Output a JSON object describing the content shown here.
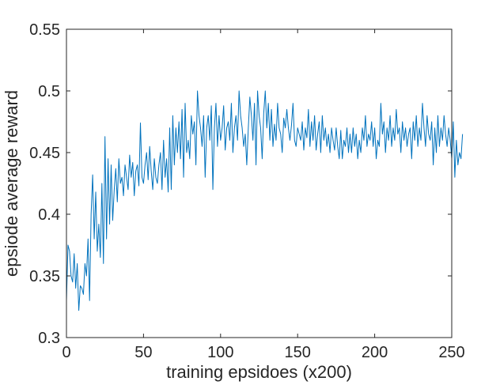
{
  "chart_data": {
    "type": "line",
    "title": "",
    "xlabel": "training epsidoes (x200)",
    "ylabel": "epsiode average reward",
    "xlim": [
      0,
      250
    ],
    "ylim": [
      0.3,
      0.55
    ],
    "xticks": [
      0,
      50,
      100,
      150,
      200,
      250
    ],
    "xtick_labels": [
      "0",
      "50",
      "100",
      "150",
      "200",
      "250"
    ],
    "yticks": [
      0.3,
      0.35,
      0.4,
      0.45,
      0.5,
      0.55
    ],
    "ytick_labels": [
      "0.3",
      "0.35",
      "0.4",
      "0.45",
      "0.5",
      "0.55"
    ],
    "grid": false,
    "box": true,
    "line_color": "#0072BD",
    "axis_color": "#262626",
    "series": [
      {
        "values": [
          0.33,
          0.375,
          0.37,
          0.35,
          0.345,
          0.368,
          0.34,
          0.36,
          0.322,
          0.342,
          0.34,
          0.335,
          0.36,
          0.35,
          0.38,
          0.33,
          0.4,
          0.432,
          0.38,
          0.418,
          0.37,
          0.392,
          0.365,
          0.425,
          0.36,
          0.463,
          0.38,
          0.445,
          0.392,
          0.44,
          0.395,
          0.42,
          0.437,
          0.41,
          0.445,
          0.425,
          0.43,
          0.415,
          0.44,
          0.43,
          0.42,
          0.448,
          0.43,
          0.442,
          0.415,
          0.435,
          0.44,
          0.423,
          0.474,
          0.43,
          0.425,
          0.44,
          0.45,
          0.428,
          0.455,
          0.435,
          0.42,
          0.445,
          0.43,
          0.425,
          0.44,
          0.45,
          0.42,
          0.46,
          0.43,
          0.445,
          0.418,
          0.47,
          0.42,
          0.48,
          0.44,
          0.47,
          0.45,
          0.475,
          0.445,
          0.485,
          0.43,
          0.49,
          0.45,
          0.46,
          0.445,
          0.48,
          0.465,
          0.475,
          0.44,
          0.5,
          0.48,
          0.47,
          0.455,
          0.48,
          0.43,
          0.47,
          0.48,
          0.46,
          0.488,
          0.42,
          0.47,
          0.49,
          0.455,
          0.48,
          0.46,
          0.47,
          0.488,
          0.452,
          0.47,
          0.475,
          0.46,
          0.49,
          0.45,
          0.47,
          0.48,
          0.46,
          0.5,
          0.48,
          0.47,
          0.455,
          0.465,
          0.44,
          0.47,
          0.495,
          0.48,
          0.46,
          0.49,
          0.44,
          0.5,
          0.48,
          0.47,
          0.445,
          0.482,
          0.5,
          0.47,
          0.49,
          0.46,
          0.485,
          0.455,
          0.473,
          0.46,
          0.49,
          0.47,
          0.465,
          0.45,
          0.478,
          0.47,
          0.485,
          0.47,
          0.46,
          0.472,
          0.49,
          0.46,
          0.455,
          0.47,
          0.465,
          0.46,
          0.475,
          0.452,
          0.47,
          0.462,
          0.485,
          0.455,
          0.475,
          0.46,
          0.48,
          0.452,
          0.465,
          0.475,
          0.45,
          0.48,
          0.46,
          0.47,
          0.455,
          0.465,
          0.45,
          0.47,
          0.46,
          0.452,
          0.47,
          0.455,
          0.445,
          0.468,
          0.445,
          0.46,
          0.455,
          0.47,
          0.45,
          0.465,
          0.45,
          0.47,
          0.455,
          0.465,
          0.445,
          0.46,
          0.45,
          0.47,
          0.46,
          0.48,
          0.455,
          0.465,
          0.46,
          0.475,
          0.455,
          0.47,
          0.445,
          0.46,
          0.455,
          0.49,
          0.465,
          0.475,
          0.45,
          0.47,
          0.46,
          0.48,
          0.455,
          0.47,
          0.46,
          0.485,
          0.465,
          0.47,
          0.45,
          0.475,
          0.46,
          0.47,
          0.455,
          0.465,
          0.47,
          0.445,
          0.475,
          0.46,
          0.48,
          0.455,
          0.47,
          0.46,
          0.49,
          0.47,
          0.455,
          0.48,
          0.465,
          0.46,
          0.475,
          0.44,
          0.47,
          0.45,
          0.48,
          0.455,
          0.47,
          0.46,
          0.48,
          0.465,
          0.455,
          0.47,
          0.46,
          0.445,
          0.475,
          0.43,
          0.46,
          0.44,
          0.45,
          0.445,
          0.465
        ]
      }
    ]
  }
}
